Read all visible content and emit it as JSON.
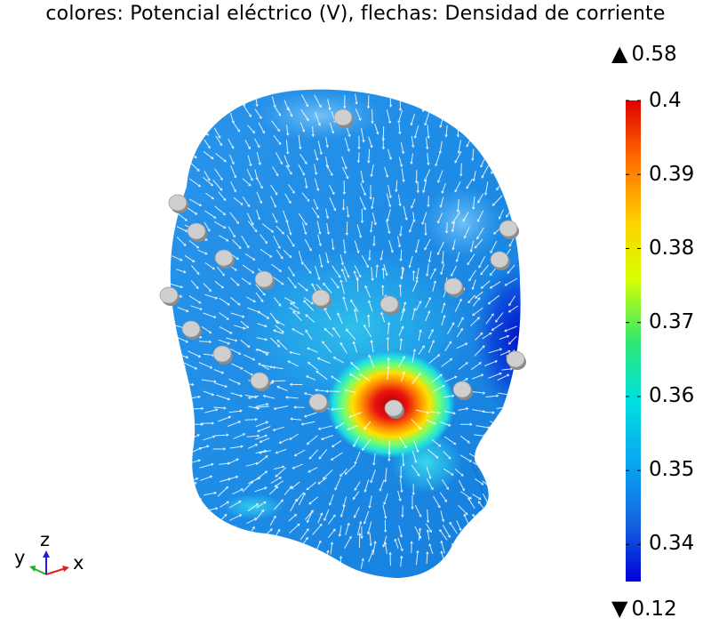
{
  "chart_data": {
    "type": "heatmap",
    "title": "colores: Potencial eléctrico (V), flechas: Densidad de corriente",
    "colorbar": {
      "min": 0.335,
      "max": 0.4,
      "ticks": [
        "0.4",
        "0.39",
        "0.38",
        "0.37",
        "0.36",
        "0.35",
        "0.34"
      ],
      "tick_values": [
        0.4,
        0.39,
        0.38,
        0.37,
        0.36,
        0.35,
        0.34
      ],
      "colormap": "rainbow",
      "range_max_label": "0.58",
      "range_min_label": "0.12"
    },
    "axes_triad": {
      "x_label": "x",
      "y_label": "y",
      "z_label": "z"
    }
  },
  "colors": {
    "head_base": "#1f8fe6",
    "hotspot": "#e01010",
    "electrode": "#c8c8c8",
    "arrow": "#ffffff",
    "axis_x": "#e02020",
    "axis_y": "#20b020",
    "axis_z": "#2020d0"
  }
}
